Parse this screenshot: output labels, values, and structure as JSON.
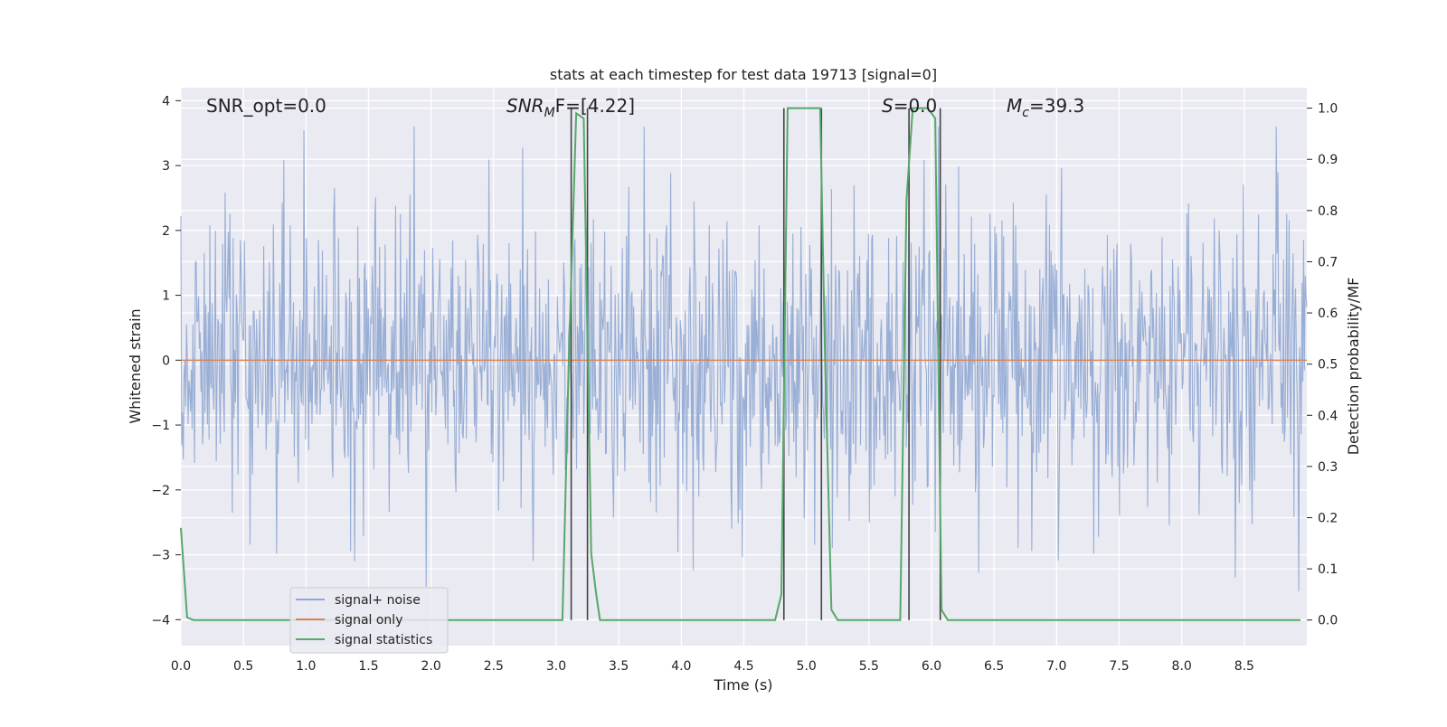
{
  "chart_data": {
    "type": "line",
    "title": "stats at each timestep for test data 19713 [signal=0]",
    "xlabel": "Time (s)",
    "ylabel": "Whitened strain",
    "ylabel_right": "Detection probability/MF",
    "xlim": [
      0.0,
      9.0
    ],
    "ylim": [
      -4.4,
      4.2
    ],
    "ylim_right": [
      -0.05,
      1.04
    ],
    "x_ticks": [
      "0.0",
      "0.5",
      "1.0",
      "1.5",
      "2.0",
      "2.5",
      "3.0",
      "3.5",
      "4.0",
      "4.5",
      "5.0",
      "5.5",
      "6.0",
      "6.5",
      "7.0",
      "7.5",
      "8.0",
      "8.5"
    ],
    "y_ticks": [
      "4",
      "3",
      "2",
      "1",
      "0",
      "−1",
      "−2",
      "−3",
      "−4"
    ],
    "y_ticks_right": [
      "1.0",
      "0.9",
      "0.8",
      "0.7",
      "0.6",
      "0.5",
      "0.4",
      "0.3",
      "0.2",
      "0.1",
      "0.0"
    ],
    "grid": true,
    "legend_position": "lower-left",
    "annotations": {
      "snr_opt": "SNR_opt=0.0",
      "snr_mf_label": "SNR",
      "snr_mf_sub": "M",
      "snr_mf_rest": "F=[4.22]",
      "s_label": "S",
      "s_rest": "=0.0",
      "mc_label": "M",
      "mc_sub": "c",
      "mc_rest": "=39.3"
    },
    "colors": {
      "noise": "#8fa7d1",
      "signal": "#dd8452",
      "stat": "#55a868",
      "background": "#eaeaf2",
      "marker": "#444444"
    },
    "series": [
      {
        "name": "signal+ noise",
        "description": "whitened strain noise, roughly Gaussian, peaks within ±4",
        "approx_range": [
          -4.0,
          3.6
        ]
      },
      {
        "name": "signal only",
        "x": [
          0.0,
          9.0
        ],
        "y": [
          0.0,
          0.0
        ]
      },
      {
        "name": "signal statistics",
        "x": [
          0.0,
          0.05,
          0.1,
          3.05,
          3.1,
          3.16,
          3.22,
          3.28,
          3.32,
          3.35,
          4.75,
          4.8,
          4.85,
          5.11,
          5.15,
          5.2,
          5.25,
          5.75,
          5.8,
          5.85,
          5.91,
          5.97,
          6.03,
          6.08,
          6.13,
          8.95
        ],
        "y": [
          0.18,
          0.005,
          0.0,
          0.0,
          0.5,
          0.99,
          0.98,
          0.13,
          0.05,
          0.0,
          0.0,
          0.05,
          1.0,
          1.0,
          0.5,
          0.02,
          0.0,
          0.0,
          0.82,
          1.0,
          1.0,
          1.0,
          0.98,
          0.02,
          0.0,
          0.0
        ]
      }
    ],
    "marker_lines_x": [
      3.12,
      3.25,
      4.82,
      5.12,
      5.82,
      6.07
    ]
  }
}
